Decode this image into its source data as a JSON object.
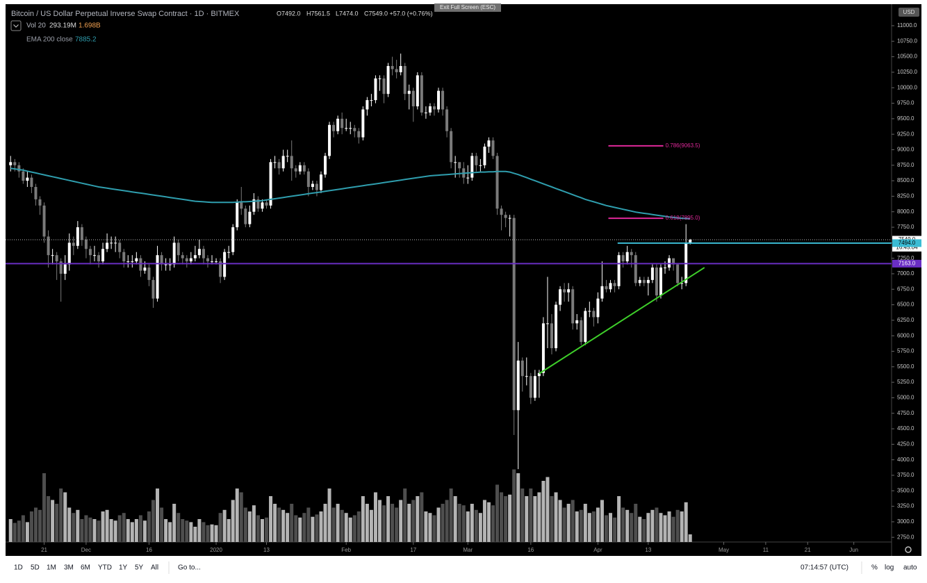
{
  "header": {
    "symbol": "Bitcoin / US Dollar Perpetual Inverse Swap Contract · 1D · BITMEX",
    "ohlc": [
      "O7492.0",
      "H7561.5",
      "L7474.0",
      "C7549.0 +57.0 (+0.76%)"
    ],
    "volume_label": "Vol 20",
    "volume_values": [
      "293.19M",
      "1.698B"
    ],
    "ema_label": "EMA 200 close",
    "ema_value": "7885.2",
    "exit_button": "Exit Full Screen (ESC)",
    "currency": "USD"
  },
  "toolbar": {
    "timeframes": [
      "1D",
      "5D",
      "1M",
      "3M",
      "6M",
      "YTD",
      "1Y",
      "5Y",
      "All"
    ],
    "goto": "Go to...",
    "clock": "07:14:57 (UTC)",
    "options": [
      "%",
      "log",
      "auto"
    ]
  },
  "chart_data": {
    "type": "candlestick",
    "up_color": "#ffffff",
    "down_color": "#7a7a7a",
    "volume_up_color": "#b4b4b4",
    "volume_down_color": "#4e4e4e",
    "ema_color": "#2f9eae",
    "open": [
      8750,
      8800,
      8750,
      8650,
      8500,
      8550,
      8400,
      8200,
      8100,
      7600,
      7300,
      7300,
      7200,
      7000,
      7150,
      7500,
      7450,
      7750,
      7550,
      7400,
      7300,
      7300,
      7200,
      7400,
      7500,
      7500,
      7500,
      7350,
      7200,
      7200,
      7200,
      7250,
      7050,
      7100,
      6900,
      6600,
      7300,
      7150,
      7150,
      7150,
      7500,
      7300,
      7250,
      7200,
      7250,
      7300,
      7400,
      7250,
      7200,
      7200,
      7200,
      6950,
      7350,
      7350,
      7750,
      8150,
      8050,
      7800,
      8000,
      8200,
      8050,
      8150,
      8100,
      8800,
      8800,
      8700,
      8900,
      8900,
      8700,
      8650,
      8750,
      8650,
      8400,
      8450,
      8350,
      8600,
      8900,
      9400,
      9300,
      9500,
      9350,
      9350,
      9350,
      9300,
      9200,
      9650,
      9800,
      9800,
      10150,
      10150,
      9900,
      10350,
      10300,
      10250,
      10350,
      9900,
      9950,
      9700,
      10200,
      9600,
      9600,
      9700,
      9650,
      9950,
      9650,
      9300,
      8800,
      8800,
      8700,
      8550,
      8550,
      8900,
      8750,
      8750,
      9050,
      9150,
      8900,
      8050,
      7950,
      7900,
      7900,
      4800,
      5600,
      5350,
      5350,
      5000,
      5350,
      5400,
      6200,
      6200,
      5800,
      6500,
      6750,
      6700,
      6750,
      6200,
      6250,
      5900,
      6400,
      6400,
      6300,
      6600,
      6800,
      6750,
      6850,
      6800,
      7300,
      7200,
      7350,
      7300,
      6850,
      6900,
      6850,
      6900,
      7100,
      6650,
      7100,
      7100,
      7250,
      7150,
      6850,
      6850,
      7492
    ],
    "high": [
      8900,
      8850,
      8800,
      8700,
      8650,
      8600,
      8450,
      8250,
      8150,
      7700,
      7400,
      7350,
      7250,
      7300,
      7650,
      7600,
      7850,
      7800,
      7600,
      7450,
      7450,
      7350,
      7500,
      7650,
      7600,
      7600,
      7550,
      7400,
      7300,
      7300,
      7350,
      7300,
      7200,
      7150,
      6950,
      7450,
      7350,
      7250,
      7250,
      7600,
      7550,
      7350,
      7300,
      7350,
      7450,
      7550,
      7450,
      7300,
      7300,
      7250,
      7250,
      7400,
      7450,
      7800,
      8200,
      8400,
      8100,
      8100,
      8300,
      8250,
      8200,
      8200,
      8850,
      8900,
      8850,
      9000,
      9000,
      9150,
      8750,
      8800,
      8800,
      8700,
      8500,
      8500,
      8650,
      8950,
      9450,
      9450,
      9550,
      9600,
      9500,
      9450,
      9400,
      9350,
      9700,
      9850,
      9900,
      10200,
      10200,
      10200,
      10400,
      10500,
      10450,
      10550,
      10400,
      10050,
      10000,
      10250,
      10250,
      9700,
      9750,
      9750,
      10000,
      10000,
      9700,
      9350,
      8900,
      8800,
      8800,
      8750,
      8950,
      8950,
      8850,
      9100,
      9200,
      9200,
      8950,
      8100,
      8000,
      7950,
      7950,
      5900,
      5650,
      5650,
      5400,
      5450,
      5450,
      6300,
      6950,
      6350,
      6550,
      6800,
      6850,
      6850,
      6800,
      6350,
      6300,
      6450,
      6550,
      6450,
      6700,
      7200,
      6900,
      6900,
      6900,
      7350,
      7350,
      7450,
      7400,
      7350,
      6950,
      6950,
      6950,
      7150,
      7150,
      7150,
      7200,
      7300,
      7250,
      7150,
      6950,
      7800,
      7561.5
    ],
    "low": [
      8650,
      8650,
      8550,
      8450,
      8400,
      8300,
      8100,
      7950,
      7500,
      7100,
      7150,
      6900,
      6550,
      6900,
      7050,
      7300,
      7400,
      7450,
      7250,
      7150,
      7200,
      7100,
      7150,
      7350,
      7400,
      7350,
      7250,
      7100,
      7100,
      7100,
      7150,
      6950,
      7000,
      6800,
      6450,
      6550,
      7050,
      7050,
      7050,
      7100,
      7200,
      7150,
      7100,
      7150,
      7200,
      7250,
      7150,
      7100,
      7150,
      7150,
      6850,
      6900,
      7250,
      7300,
      7700,
      7950,
      7750,
      7750,
      7950,
      8000,
      8000,
      8050,
      8050,
      8700,
      8600,
      8650,
      8800,
      8500,
      8550,
      8600,
      8600,
      8250,
      8350,
      8250,
      8300,
      8550,
      8850,
      9200,
      9250,
      9250,
      9300,
      9250,
      9200,
      9100,
      9150,
      9550,
      9700,
      9750,
      9950,
      9750,
      9850,
      10200,
      10150,
      10200,
      9800,
      9650,
      9450,
      9650,
      9550,
      9500,
      9550,
      9550,
      9600,
      9550,
      9200,
      8700,
      8550,
      8550,
      8450,
      8450,
      8500,
      8650,
      8650,
      8700,
      8950,
      8850,
      7950,
      7700,
      7750,
      7600,
      4400,
      3850,
      5100,
      5200,
      4900,
      4950,
      5000,
      5350,
      5800,
      5700,
      5750,
      6400,
      6550,
      6550,
      6100,
      6100,
      5850,
      5850,
      6300,
      6150,
      6200,
      6550,
      6700,
      6700,
      6700,
      6750,
      7100,
      7150,
      7100,
      6800,
      6800,
      6800,
      6650,
      6850,
      6550,
      6600,
      7000,
      7050,
      7050,
      6800,
      6750,
      6800,
      7474
    ],
    "close": [
      8800,
      8750,
      8650,
      8500,
      8550,
      8400,
      8200,
      8100,
      7600,
      7300,
      7300,
      7200,
      7000,
      7150,
      7500,
      7450,
      7750,
      7550,
      7400,
      7300,
      7300,
      7200,
      7400,
      7500,
      7500,
      7500,
      7350,
      7200,
      7200,
      7200,
      7250,
      7050,
      7100,
      6900,
      6600,
      7300,
      7150,
      7150,
      7150,
      7500,
      7300,
      7250,
      7200,
      7250,
      7300,
      7400,
      7250,
      7200,
      7200,
      7200,
      6950,
      7350,
      7350,
      7750,
      8150,
      8050,
      7800,
      8000,
      8200,
      8050,
      8150,
      8100,
      8800,
      8800,
      8700,
      8900,
      8900,
      8700,
      8650,
      8750,
      8650,
      8400,
      8450,
      8350,
      8600,
      8900,
      9400,
      9300,
      9500,
      9350,
      9350,
      9350,
      9300,
      9200,
      9650,
      9800,
      9800,
      10150,
      10150,
      9900,
      10350,
      10300,
      10250,
      10350,
      9900,
      9950,
      9700,
      10200,
      9600,
      9600,
      9700,
      9650,
      9950,
      9650,
      9300,
      8800,
      8800,
      8700,
      8550,
      8550,
      8900,
      8750,
      8750,
      9050,
      9150,
      8900,
      8050,
      7950,
      7900,
      7900,
      4800,
      5600,
      5350,
      5350,
      5000,
      5350,
      5400,
      6200,
      6200,
      5800,
      6500,
      6750,
      6700,
      6750,
      6200,
      6250,
      5900,
      6400,
      6400,
      6300,
      6600,
      6800,
      6750,
      6850,
      6800,
      7300,
      7200,
      7350,
      7300,
      6850,
      6900,
      6850,
      6900,
      7100,
      6650,
      7100,
      7100,
      7250,
      7150,
      6850,
      6850,
      7492,
      7549
    ],
    "volume": [
      300,
      250,
      280,
      350,
      260,
      400,
      450,
      420,
      900,
      600,
      550,
      500,
      700,
      650,
      450,
      380,
      420,
      300,
      350,
      320,
      300,
      280,
      400,
      420,
      300,
      280,
      350,
      380,
      300,
      260,
      300,
      350,
      280,
      400,
      550,
      700,
      450,
      300,
      260,
      500,
      380,
      300,
      280,
      260,
      200,
      300,
      260,
      220,
      230,
      220,
      380,
      420,
      300,
      550,
      700,
      650,
      450,
      400,
      480,
      350,
      300,
      320,
      600,
      500,
      450,
      420,
      380,
      500,
      350,
      320,
      380,
      450,
      330,
      360,
      400,
      500,
      700,
      450,
      500,
      420,
      380,
      320,
      350,
      400,
      600,
      500,
      420,
      650,
      550,
      480,
      600,
      500,
      450,
      550,
      700,
      500,
      550,
      600,
      650,
      400,
      380,
      350,
      450,
      500,
      550,
      700,
      600,
      500,
      480,
      400,
      500,
      420,
      380,
      550,
      520,
      480,
      750,
      650,
      600,
      620,
      950,
      900,
      700,
      600,
      700,
      600,
      650,
      800,
      850,
      600,
      650,
      550,
      450,
      500,
      550,
      400,
      420,
      500,
      380,
      400,
      450,
      550,
      350,
      380,
      320,
      600,
      450,
      420,
      380,
      500,
      330,
      300,
      380,
      420,
      450,
      380,
      350,
      400,
      330,
      420,
      400,
      520,
      100
    ],
    "ema": [
      8700,
      8690,
      8680,
      8670,
      8655,
      8640,
      8625,
      8610,
      8595,
      8580,
      8565,
      8550,
      8535,
      8520,
      8505,
      8490,
      8475,
      8460,
      8445,
      8430,
      8415,
      8400,
      8390,
      8380,
      8370,
      8360,
      8350,
      8340,
      8330,
      8320,
      8310,
      8300,
      8290,
      8280,
      8270,
      8260,
      8250,
      8240,
      8230,
      8220,
      8210,
      8200,
      8190,
      8180,
      8170,
      8165,
      8160,
      8155,
      8150,
      8150,
      8150,
      8150,
      8150,
      8150,
      8155,
      8160,
      8160,
      8165,
      8170,
      8175,
      8180,
      8190,
      8200,
      8210,
      8220,
      8230,
      8240,
      8250,
      8260,
      8270,
      8280,
      8290,
      8300,
      8310,
      8320,
      8330,
      8340,
      8350,
      8360,
      8370,
      8380,
      8390,
      8400,
      8410,
      8420,
      8430,
      8440,
      8450,
      8460,
      8470,
      8480,
      8490,
      8500,
      8510,
      8520,
      8530,
      8540,
      8550,
      8560,
      8570,
      8580,
      8585,
      8590,
      8595,
      8600,
      8605,
      8610,
      8615,
      8620,
      8625,
      8630,
      8635,
      8640,
      8640,
      8645,
      8645,
      8650,
      8650,
      8650,
      8640,
      8620,
      8600,
      8575,
      8550,
      8525,
      8500,
      8475,
      8450,
      8425,
      8400,
      8375,
      8350,
      8325,
      8300,
      8275,
      8250,
      8225,
      8200,
      8180,
      8160,
      8140,
      8120,
      8100,
      8085,
      8070,
      8055,
      8040,
      8025,
      8010,
      7995,
      7985,
      7975,
      7965,
      7955,
      7945,
      7935,
      7925,
      7915,
      7908,
      7901,
      7895,
      7890,
      7885.2
    ],
    "xlim": [
      -1.2,
      210
    ],
    "xticks": [
      {
        "value": 8,
        "label": "21"
      },
      {
        "value": 18,
        "label": "Dec"
      },
      {
        "value": 33,
        "label": "16"
      },
      {
        "value": 49,
        "label": "2020"
      },
      {
        "value": 61,
        "label": "13"
      },
      {
        "value": 80,
        "label": "Feb"
      },
      {
        "value": 96,
        "label": "17"
      },
      {
        "value": 109,
        "label": "Mar"
      },
      {
        "value": 124,
        "label": "16"
      },
      {
        "value": 140,
        "label": "Apr"
      },
      {
        "value": 152,
        "label": "13"
      },
      {
        "value": 170,
        "label": "May"
      },
      {
        "value": 180,
        "label": "11"
      },
      {
        "value": 190,
        "label": "21"
      },
      {
        "value": 201,
        "label": "Jun"
      }
    ],
    "ylim": [
      2450,
      11325
    ],
    "yticks": [
      {
        "value": 2750,
        "label": "2750.0"
      },
      {
        "value": 3000,
        "label": "3000.0"
      },
      {
        "value": 3250,
        "label": "3250.0"
      },
      {
        "value": 3500,
        "label": "3500.0"
      },
      {
        "value": 3750,
        "label": "3750.0"
      },
      {
        "value": 4000,
        "label": "4000.0"
      },
      {
        "value": 4250,
        "label": "4250.0"
      },
      {
        "value": 4500,
        "label": "4500.0"
      },
      {
        "value": 4750,
        "label": "4750.0"
      },
      {
        "value": 5000,
        "label": "5000.0"
      },
      {
        "value": 5250,
        "label": "5250.0"
      },
      {
        "value": 5500,
        "label": "5500.0"
      },
      {
        "value": 5750,
        "label": "5750.0"
      },
      {
        "value": 6000,
        "label": "6000.0"
      },
      {
        "value": 6250,
        "label": "6250.0"
      },
      {
        "value": 6500,
        "label": "6500.0"
      },
      {
        "value": 6750,
        "label": "6750.0"
      },
      {
        "value": 7000,
        "label": "7000.0"
      },
      {
        "value": 7250,
        "label": "7250.0"
      },
      {
        "value": 7500,
        "label": "7500.0"
      },
      {
        "value": 7750,
        "label": "7750.0"
      },
      {
        "value": 8000,
        "label": "8000.0"
      },
      {
        "value": 8250,
        "label": "8250.0"
      },
      {
        "value": 8500,
        "label": "8500.0"
      },
      {
        "value": 8750,
        "label": "8750.0"
      },
      {
        "value": 9000,
        "label": "9000.0"
      },
      {
        "value": 9250,
        "label": "9250.0"
      },
      {
        "value": 9500,
        "label": "9500.0"
      },
      {
        "value": 9750,
        "label": "9750.0"
      },
      {
        "value": 10000,
        "label": "10000.0"
      },
      {
        "value": 10250,
        "label": "10250.0"
      },
      {
        "value": 10500,
        "label": "10500.0"
      },
      {
        "value": 10750,
        "label": "10750.0"
      },
      {
        "value": 11000,
        "label": "11000.0"
      }
    ],
    "price_tags": [
      {
        "value": 7549,
        "label": "7549.0",
        "countdown": "16:45:04",
        "color": "#ffffff",
        "text_color": "#000000",
        "line": "dotted",
        "line_start": -1.2
      },
      {
        "value": 7494,
        "label": "7494.0",
        "color": "#3bbcd4",
        "text_color": "#000000",
        "line": "solid",
        "line_start": 144.7
      },
      {
        "value": 7163,
        "label": "7163.0",
        "color": "#6a2ec4",
        "text_color": "#ffffff",
        "line": "solid",
        "line_start": -1.2
      }
    ],
    "fib_color": "#e0289a",
    "fib_levels": [
      {
        "label": "0.786(9063.5)",
        "value": 9063.5,
        "x": [
          142.5,
          155.6
        ]
      },
      {
        "label": "0.618(7895.0)",
        "value": 7895,
        "x": [
          142.5,
          155.6
        ]
      }
    ],
    "trend_line": {
      "x": [
        126,
        165.4
      ],
      "y": [
        5390,
        7100
      ],
      "color": "#3ecf2a"
    }
  }
}
